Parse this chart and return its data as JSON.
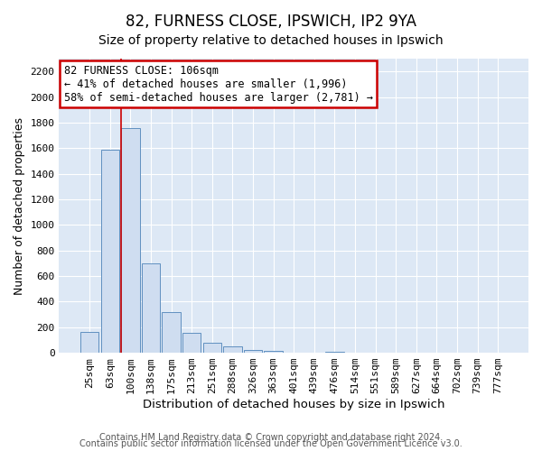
{
  "title": "82, FURNESS CLOSE, IPSWICH, IP2 9YA",
  "subtitle": "Size of property relative to detached houses in Ipswich",
  "xlabel": "Distribution of detached houses by size in Ipswich",
  "ylabel": "Number of detached properties",
  "bar_labels": [
    "25sqm",
    "63sqm",
    "100sqm",
    "138sqm",
    "175sqm",
    "213sqm",
    "251sqm",
    "288sqm",
    "326sqm",
    "363sqm",
    "401sqm",
    "439sqm",
    "476sqm",
    "514sqm",
    "551sqm",
    "589sqm",
    "627sqm",
    "664sqm",
    "702sqm",
    "739sqm",
    "777sqm"
  ],
  "bar_values": [
    160,
    1590,
    1755,
    700,
    315,
    155,
    80,
    50,
    25,
    15,
    0,
    0,
    10,
    0,
    0,
    0,
    0,
    0,
    0,
    0,
    0
  ],
  "bar_color": "#cfddf0",
  "bar_edge_color": "#6090c0",
  "red_line_index": 2.0,
  "annotation_text": "82 FURNESS CLOSE: 106sqm\n← 41% of detached houses are smaller (1,996)\n58% of semi-detached houses are larger (2,781) →",
  "annotation_box_color": "#ffffff",
  "annotation_box_edge_color": "#cc0000",
  "ylim": [
    0,
    2300
  ],
  "yticks": [
    0,
    200,
    400,
    600,
    800,
    1000,
    1200,
    1400,
    1600,
    1800,
    2000,
    2200
  ],
  "footer1": "Contains HM Land Registry data © Crown copyright and database right 2024.",
  "footer2": "Contains public sector information licensed under the Open Government Licence v3.0.",
  "title_fontsize": 12,
  "subtitle_fontsize": 10,
  "xlabel_fontsize": 9.5,
  "ylabel_fontsize": 9,
  "tick_fontsize": 8,
  "annotation_fontsize": 8.5,
  "footer_fontsize": 7
}
